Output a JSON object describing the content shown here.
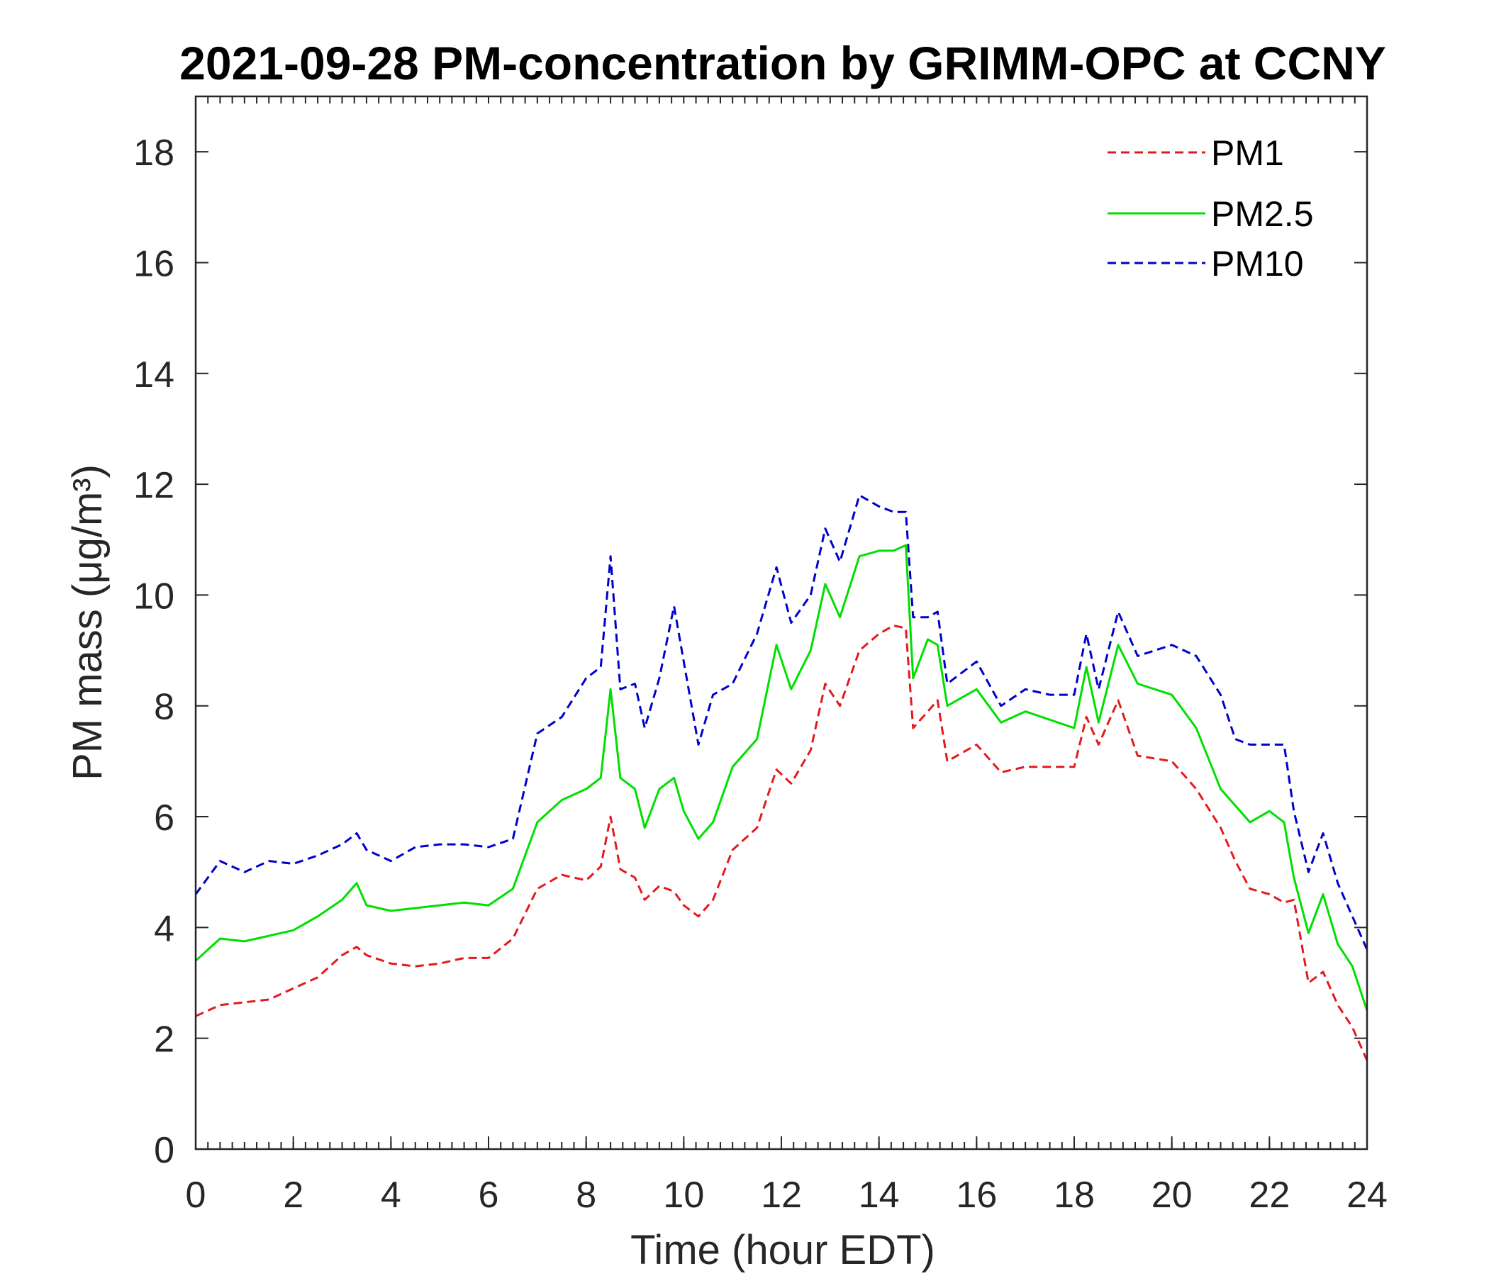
{
  "chart_data": {
    "type": "line",
    "title": "2021-09-28 PM-concentration by GRIMM-OPC at CCNY",
    "xlabel": "Time (hour EDT)",
    "ylabel": "PM mass (μg/m³)",
    "xlim": [
      0,
      24
    ],
    "ylim": [
      0,
      19
    ],
    "x_ticks": [
      0,
      2,
      4,
      6,
      8,
      10,
      12,
      14,
      16,
      18,
      20,
      22,
      24
    ],
    "y_ticks": [
      0,
      2,
      4,
      6,
      8,
      10,
      12,
      14,
      16,
      18
    ],
    "x_tick_labels": [
      "0",
      "2",
      "4",
      "6",
      "8",
      "10",
      "12",
      "14",
      "16",
      "18",
      "20",
      "22",
      "24"
    ],
    "y_tick_labels": [
      "0",
      "2",
      "4",
      "6",
      "8",
      "10",
      "12",
      "14",
      "16",
      "18"
    ],
    "grid": false,
    "legend_position": "top-right",
    "x": [
      0,
      0.5,
      1,
      1.5,
      2,
      2.5,
      3,
      3.3,
      3.5,
      4,
      4.5,
      5,
      5.5,
      6,
      6.5,
      7,
      7.5,
      8,
      8.3,
      8.5,
      8.7,
      9,
      9.2,
      9.5,
      9.8,
      10,
      10.3,
      10.6,
      11,
      11.5,
      11.9,
      12.2,
      12.6,
      12.9,
      13.2,
      13.6,
      14,
      14.3,
      14.55,
      14.7,
      15,
      15.2,
      15.4,
      16,
      16.5,
      17,
      17.5,
      18,
      18.25,
      18.5,
      18.9,
      19.3,
      20,
      20.5,
      21,
      21.3,
      21.6,
      22,
      22.3,
      22.5,
      22.8,
      23.1,
      23.4,
      23.7,
      24
    ],
    "series": [
      {
        "name": "PM1",
        "color": "#e31a1c",
        "dash": "dashed",
        "values": [
          2.4,
          2.6,
          2.65,
          2.7,
          2.9,
          3.1,
          3.5,
          3.65,
          3.5,
          3.35,
          3.3,
          3.35,
          3.45,
          3.45,
          3.8,
          4.7,
          4.95,
          4.85,
          5.1,
          6.0,
          5.05,
          4.9,
          4.5,
          4.75,
          4.65,
          4.4,
          4.2,
          4.5,
          5.4,
          5.8,
          6.85,
          6.6,
          7.2,
          8.4,
          8.0,
          9.0,
          9.3,
          9.45,
          9.4,
          7.6,
          7.9,
          8.1,
          7.0,
          7.3,
          6.8,
          6.9,
          6.9,
          6.9,
          7.8,
          7.3,
          8.1,
          7.1,
          7.0,
          6.5,
          5.8,
          5.2,
          4.7,
          4.6,
          4.45,
          4.5,
          3.0,
          3.2,
          2.6,
          2.2,
          1.6
        ]
      },
      {
        "name": "PM2.5",
        "color": "#00e000",
        "dash": "solid",
        "values": [
          3.4,
          3.8,
          3.75,
          3.85,
          3.95,
          4.2,
          4.5,
          4.8,
          4.4,
          4.3,
          4.35,
          4.4,
          4.45,
          4.4,
          4.7,
          5.9,
          6.3,
          6.5,
          6.7,
          8.3,
          6.7,
          6.5,
          5.8,
          6.5,
          6.7,
          6.1,
          5.6,
          5.9,
          6.9,
          7.4,
          9.1,
          8.3,
          9.0,
          10.2,
          9.6,
          10.7,
          10.8,
          10.8,
          10.9,
          8.5,
          9.2,
          9.1,
          8.0,
          8.3,
          7.7,
          7.9,
          7.75,
          7.6,
          8.7,
          7.7,
          9.1,
          8.4,
          8.2,
          7.6,
          6.5,
          6.2,
          5.9,
          6.1,
          5.9,
          4.9,
          3.9,
          4.6,
          3.7,
          3.3,
          2.5
        ]
      },
      {
        "name": "PM10",
        "color": "#0000cc",
        "dash": "dashed",
        "values": [
          4.6,
          5.2,
          5.0,
          5.2,
          5.15,
          5.3,
          5.5,
          5.7,
          5.4,
          5.2,
          5.45,
          5.5,
          5.5,
          5.45,
          5.6,
          7.5,
          7.8,
          8.5,
          8.7,
          10.7,
          8.3,
          8.4,
          7.6,
          8.5,
          9.8,
          8.8,
          7.3,
          8.2,
          8.4,
          9.3,
          10.5,
          9.5,
          10.0,
          11.2,
          10.6,
          11.8,
          11.6,
          11.5,
          11.5,
          9.6,
          9.6,
          9.7,
          8.4,
          8.8,
          8.0,
          8.3,
          8.2,
          8.2,
          9.3,
          8.3,
          9.7,
          8.9,
          9.1,
          8.9,
          8.2,
          7.4,
          7.3,
          7.3,
          7.3,
          6.1,
          5.0,
          5.7,
          4.8,
          4.2,
          3.6
        ]
      }
    ]
  }
}
